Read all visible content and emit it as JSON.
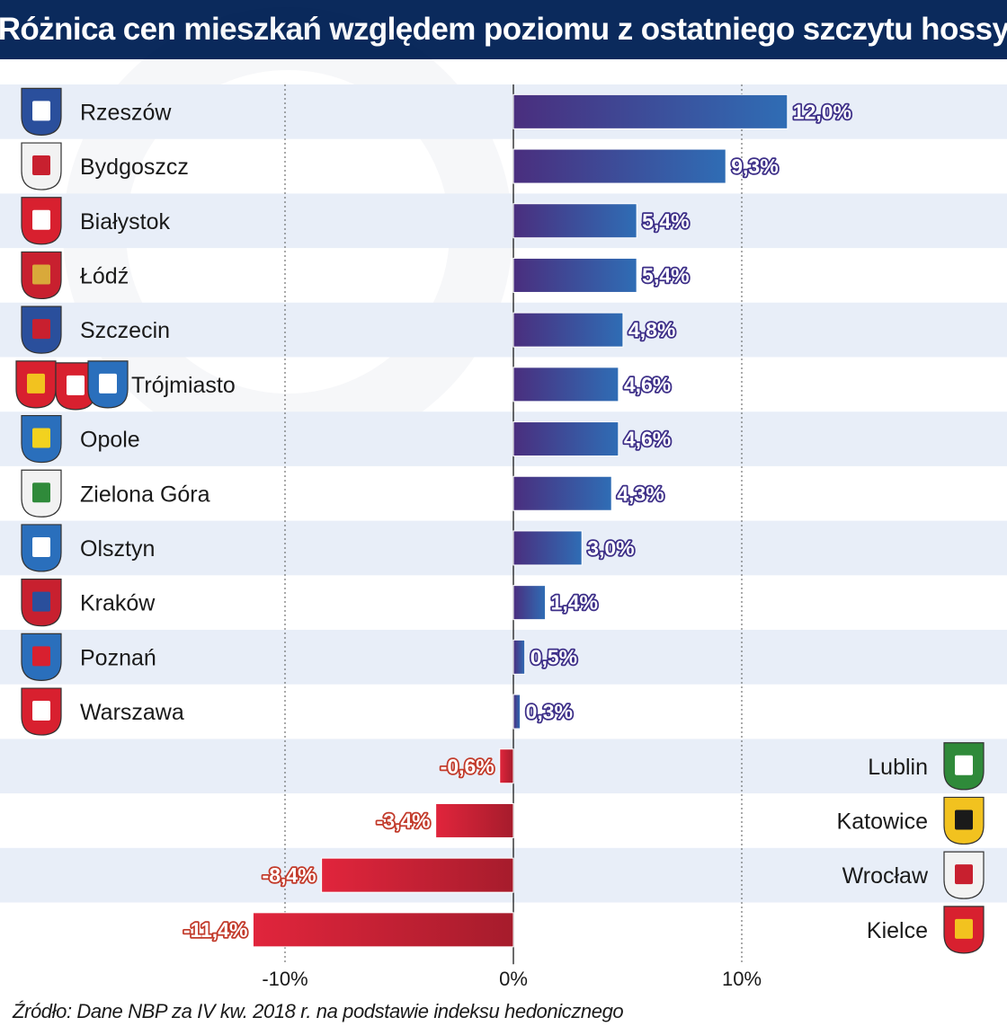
{
  "title": "Różnica cen mieszkań względem poziomu z ostatniego szczytu hossy",
  "source": "Źródło: Dane NBP za IV kw. 2018 r. na podstawie indeksu hedonicznego",
  "colors": {
    "header_bg": "#0b2a5c",
    "row_band": "#e8eef8",
    "positive_bar_start": "#4a2e7e",
    "positive_bar_end": "#2f6db5",
    "negative_bar_start": "#e1253c",
    "negative_bar_end": "#a61c2c",
    "positive_label_fill": "#ffffff",
    "positive_label_halo": "#3d2f88",
    "negative_label_fill": "#ffffff",
    "negative_label_halo": "#c23a2a"
  },
  "chart_data": {
    "type": "bar",
    "orientation": "horizontal",
    "categories": [
      "Rzeszów",
      "Bydgoszcz",
      "Białystok",
      "Łódź",
      "Szczecin",
      "Trójmiasto",
      "Opole",
      "Zielona Góra",
      "Olsztyn",
      "Kraków",
      "Poznań",
      "Warszawa",
      "Lublin",
      "Katowice",
      "Wrocław",
      "Kielce"
    ],
    "values": [
      12.0,
      9.3,
      5.4,
      5.4,
      4.8,
      4.6,
      4.6,
      4.3,
      3.0,
      1.4,
      0.5,
      0.3,
      -0.6,
      -3.4,
      -8.4,
      -11.4
    ],
    "value_labels": [
      "12,0%",
      "9,3%",
      "5,4%",
      "5,4%",
      "4,8%",
      "4,6%",
      "4,6%",
      "4,3%",
      "3,0%",
      "1,4%",
      "0,5%",
      "0,3%",
      "-0,6%",
      "-3,4%",
      "-8,4%",
      "-11,4%"
    ],
    "icons": [
      "coat-of-arms-rzeszow-icon",
      "coat-of-arms-bydgoszcz-icon",
      "coat-of-arms-bialystok-icon",
      "coat-of-arms-lodz-icon",
      "coat-of-arms-szczecin-icon",
      "coat-of-arms-trojmiasto-icon",
      "coat-of-arms-opole-icon",
      "coat-of-arms-zielona-gora-icon",
      "coat-of-arms-olsztyn-icon",
      "coat-of-arms-krakow-icon",
      "coat-of-arms-poznan-icon",
      "coat-of-arms-warszawa-icon",
      "coat-of-arms-lublin-icon",
      "coat-of-arms-katowice-icon",
      "coat-of-arms-wroclaw-icon",
      "coat-of-arms-kielce-icon"
    ],
    "xlim": [
      -15,
      15
    ],
    "xticks": [
      -10,
      0,
      10
    ],
    "xtick_labels": [
      "-10%",
      "0%",
      "10%"
    ],
    "grid": "vertical dashed at -10% and 10%",
    "xlabel": "",
    "ylabel": ""
  }
}
